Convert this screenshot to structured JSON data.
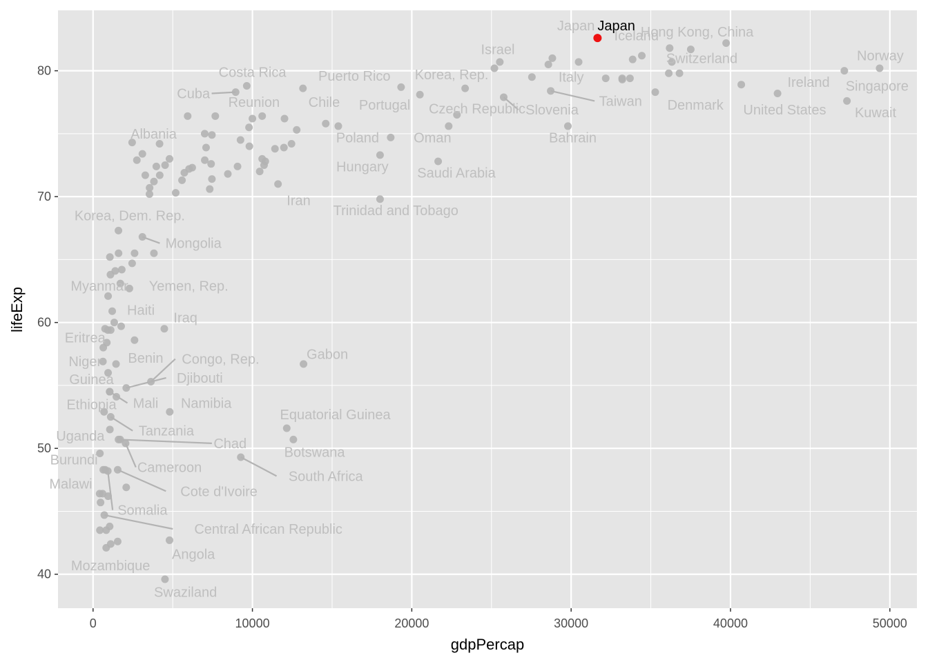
{
  "chart_data": {
    "type": "scatter",
    "xlabel": "gdpPercap",
    "ylabel": "lifeExp",
    "xlim": [
      -2200,
      51700
    ],
    "ylim": [
      37.3,
      84.8
    ],
    "x_ticks": [
      0,
      10000,
      20000,
      30000,
      40000,
      50000
    ],
    "x_tick_labels": [
      "0",
      "10000",
      "20000",
      "30000",
      "40000",
      "50000"
    ],
    "y_ticks": [
      40,
      50,
      60,
      70,
      80
    ],
    "y_tick_labels": [
      "40",
      "50",
      "60",
      "70",
      "80"
    ],
    "grid": true,
    "colors": {
      "panel": "#e5e5e5",
      "grid": "#ffffff",
      "point": "#b3b3b3",
      "label": "#bfbfbf",
      "highlight_point": "#ee1111",
      "highlight_label": "#000000"
    },
    "highlight": {
      "name": "Japan",
      "x": 31656,
      "y": 82.6
    },
    "labels": [
      {
        "name": "Japan",
        "x": 31656,
        "y": 82.6,
        "lx": 30300,
        "ly": 83.6
      },
      {
        "name": "Iceland",
        "x": 36181,
        "y": 81.8,
        "lx": 34100,
        "ly": 82.8
      },
      {
        "name": "Hong Kong, China",
        "x": 39725,
        "y": 82.2,
        "lx": 37900,
        "ly": 83.1
      },
      {
        "name": "Israel",
        "x": 25523,
        "y": 80.7,
        "lx": 25400,
        "ly": 81.7
      },
      {
        "name": "Norway",
        "x": 49357,
        "y": 80.2,
        "lx": 49400,
        "ly": 81.2
      },
      {
        "name": "Switzerland",
        "x": 37506,
        "y": 81.7,
        "lx": 38200,
        "ly": 81.0
      },
      {
        "name": "Costa Rica",
        "x": 9645,
        "y": 78.8,
        "lx": 10000,
        "ly": 79.9
      },
      {
        "name": "Puerto Rico",
        "x": 19329,
        "y": 78.7,
        "lx": 16400,
        "ly": 79.6
      },
      {
        "name": "Korea, Rep.",
        "x": 23348,
        "y": 78.6,
        "lx": 22500,
        "ly": 79.7
      },
      {
        "name": "Italy",
        "x": 28570,
        "y": 80.5,
        "lx": 30000,
        "ly": 79.5
      },
      {
        "name": "Ireland",
        "x": 40676,
        "y": 78.9,
        "lx": 44900,
        "ly": 79.1
      },
      {
        "name": "Singapore",
        "x": 47143,
        "y": 80.0,
        "lx": 49200,
        "ly": 78.8
      },
      {
        "name": "Cuba",
        "x": 8948,
        "y": 78.3,
        "lx": 6300,
        "ly": 78.2,
        "leader": true
      },
      {
        "name": "Taiwan",
        "x": 28718,
        "y": 78.4,
        "lx": 33100,
        "ly": 77.6,
        "leader": true
      },
      {
        "name": "Reunion",
        "x": 7670,
        "y": 76.4,
        "lx": 10100,
        "ly": 77.5
      },
      {
        "name": "Chile",
        "x": 13172,
        "y": 78.6,
        "lx": 14500,
        "ly": 77.5
      },
      {
        "name": "Denmark",
        "x": 35278,
        "y": 78.3,
        "lx": 37800,
        "ly": 77.3
      },
      {
        "name": "Portugal",
        "x": 20510,
        "y": 78.1,
        "lx": 18300,
        "ly": 77.3
      },
      {
        "name": "Czech Republic",
        "x": 22833,
        "y": 76.5,
        "lx": 24100,
        "ly": 77.0
      },
      {
        "name": "Slovenia",
        "x": 25768,
        "y": 77.9,
        "lx": 28800,
        "ly": 76.9,
        "leader": true
      },
      {
        "name": "United States",
        "x": 42952,
        "y": 78.2,
        "lx": 43400,
        "ly": 76.9
      },
      {
        "name": "Kuwait",
        "x": 47307,
        "y": 77.6,
        "lx": 49100,
        "ly": 76.7
      },
      {
        "name": "Albania",
        "x": 5937,
        "y": 76.4,
        "lx": 3800,
        "ly": 75.0
      },
      {
        "name": "Poland",
        "x": 15390,
        "y": 75.6,
        "lx": 16600,
        "ly": 74.7
      },
      {
        "name": "Oman",
        "x": 22316,
        "y": 75.6,
        "lx": 21300,
        "ly": 74.7
      },
      {
        "name": "Bahrain",
        "x": 29796,
        "y": 75.6,
        "lx": 30100,
        "ly": 74.7
      },
      {
        "name": "Hungary",
        "x": 18009,
        "y": 73.3,
        "lx": 16900,
        "ly": 72.4
      },
      {
        "name": "Saudi Arabia",
        "x": 21655,
        "y": 72.8,
        "lx": 22800,
        "ly": 71.9
      },
      {
        "name": "Iran",
        "x": 11606,
        "y": 71.0,
        "lx": 12900,
        "ly": 69.7
      },
      {
        "name": "Trinidad and Tobago",
        "x": 18009,
        "y": 69.8,
        "lx": 19000,
        "ly": 68.9
      },
      {
        "name": "Korea, Dem. Rep.",
        "x": 1593,
        "y": 67.3,
        "lx": 2300,
        "ly": 68.5
      },
      {
        "name": "Mongolia",
        "x": 3096,
        "y": 66.8,
        "lx": 6300,
        "ly": 66.3,
        "leader": true
      },
      {
        "name": "Myanmar",
        "x": 944,
        "y": 62.1,
        "lx": 400,
        "ly": 62.9
      },
      {
        "name": "Yemen, Rep.",
        "x": 2281,
        "y": 62.7,
        "lx": 6000,
        "ly": 62.9
      },
      {
        "name": "Haiti",
        "x": 1202,
        "y": 60.9,
        "lx": 3000,
        "ly": 61.0
      },
      {
        "name": "Iraq",
        "x": 4471,
        "y": 59.5,
        "lx": 5800,
        "ly": 60.4
      },
      {
        "name": "Eritrea",
        "x": 641,
        "y": 58.0,
        "lx": -500,
        "ly": 58.8
      },
      {
        "name": "Gabon",
        "x": 13206,
        "y": 56.7,
        "lx": 14700,
        "ly": 57.5
      },
      {
        "name": "Benin",
        "x": 1441,
        "y": 56.7,
        "lx": 3300,
        "ly": 57.2
      },
      {
        "name": "Congo, Rep.",
        "x": 3632,
        "y": 55.3,
        "lx": 8000,
        "ly": 57.1,
        "leader": true
      },
      {
        "name": "Niger",
        "x": 619,
        "y": 56.9,
        "lx": -500,
        "ly": 56.9
      },
      {
        "name": "Djibouti",
        "x": 2082,
        "y": 54.8,
        "lx": 6700,
        "ly": 55.6,
        "leader": true
      },
      {
        "name": "Guinea",
        "x": 943,
        "y": 56.0,
        "lx": -100,
        "ly": 55.5
      },
      {
        "name": "Mali",
        "x": 1042,
        "y": 54.5,
        "lx": 3300,
        "ly": 53.6,
        "leader": true
      },
      {
        "name": "Namibia",
        "x": 4811,
        "y": 52.9,
        "lx": 7100,
        "ly": 53.6
      },
      {
        "name": "Ethiopia",
        "x": 691,
        "y": 52.9,
        "lx": -100,
        "ly": 53.5
      },
      {
        "name": "Equatorial Guinea",
        "x": 12154,
        "y": 51.6,
        "lx": 15200,
        "ly": 52.7
      },
      {
        "name": "Tanzania",
        "x": 1107,
        "y": 52.5,
        "lx": 4600,
        "ly": 51.4,
        "leader": true
      },
      {
        "name": "Uganda",
        "x": 1056,
        "y": 51.5,
        "lx": -800,
        "ly": 51.0
      },
      {
        "name": "Chad",
        "x": 1704,
        "y": 50.7,
        "lx": 8600,
        "ly": 50.4,
        "leader": true
      },
      {
        "name": "Botswana",
        "x": 12570,
        "y": 50.7,
        "lx": 13900,
        "ly": 49.7
      },
      {
        "name": "Burundi",
        "x": 430,
        "y": 49.6,
        "lx": -1200,
        "ly": 49.1
      },
      {
        "name": "Cameroon",
        "x": 2042,
        "y": 50.4,
        "lx": 4800,
        "ly": 48.5,
        "leader": true
      },
      {
        "name": "South Africa",
        "x": 9270,
        "y": 49.3,
        "lx": 14600,
        "ly": 47.8,
        "leader": true
      },
      {
        "name": "Malawi",
        "x": 759,
        "y": 48.3,
        "lx": -1400,
        "ly": 47.2
      },
      {
        "name": "Cote d'Ivoire",
        "x": 1545,
        "y": 48.3,
        "lx": 7900,
        "ly": 46.6,
        "leader": true
      },
      {
        "name": "Somalia",
        "x": 926,
        "y": 48.2,
        "lx": 3100,
        "ly": 45.1,
        "leader": true
      },
      {
        "name": "Central African Republic",
        "x": 706,
        "y": 44.7,
        "lx": 11000,
        "ly": 43.6,
        "leader": true
      },
      {
        "name": "Angola",
        "x": 4797,
        "y": 42.7,
        "lx": 6300,
        "ly": 41.6
      },
      {
        "name": "Mozambique",
        "x": 824,
        "y": 42.1,
        "lx": 1100,
        "ly": 40.7
      },
      {
        "name": "Swaziland",
        "x": 4513,
        "y": 39.6,
        "lx": 5800,
        "ly": 38.6
      }
    ],
    "points": [
      [
        31656,
        82.6
      ],
      [
        36181,
        81.8
      ],
      [
        39725,
        82.2
      ],
      [
        25523,
        80.7
      ],
      [
        49357,
        80.2
      ],
      [
        37506,
        81.7
      ],
      [
        9645,
        78.8
      ],
      [
        19329,
        78.7
      ],
      [
        23348,
        78.6
      ],
      [
        28570,
        80.5
      ],
      [
        40676,
        78.9
      ],
      [
        47143,
        80.0
      ],
      [
        8948,
        78.3
      ],
      [
        28718,
        78.4
      ],
      [
        7670,
        76.4
      ],
      [
        13172,
        78.6
      ],
      [
        35278,
        78.3
      ],
      [
        20510,
        78.1
      ],
      [
        22833,
        76.5
      ],
      [
        25768,
        77.9
      ],
      [
        42952,
        78.2
      ],
      [
        47307,
        77.6
      ],
      [
        5937,
        76.4
      ],
      [
        15390,
        75.6
      ],
      [
        22316,
        75.6
      ],
      [
        29796,
        75.6
      ],
      [
        18009,
        73.3
      ],
      [
        21655,
        72.8
      ],
      [
        11606,
        71.0
      ],
      [
        18009,
        69.8
      ],
      [
        1593,
        67.3
      ],
      [
        3096,
        66.8
      ],
      [
        944,
        62.1
      ],
      [
        2281,
        62.7
      ],
      [
        1202,
        60.9
      ],
      [
        4471,
        59.5
      ],
      [
        641,
        58.0
      ],
      [
        13206,
        56.7
      ],
      [
        1441,
        56.7
      ],
      [
        3632,
        55.3
      ],
      [
        619,
        56.9
      ],
      [
        2082,
        54.8
      ],
      [
        943,
        56.0
      ],
      [
        1042,
        54.5
      ],
      [
        4811,
        52.9
      ],
      [
        691,
        52.9
      ],
      [
        12154,
        51.6
      ],
      [
        1107,
        52.5
      ],
      [
        1056,
        51.5
      ],
      [
        1704,
        50.7
      ],
      [
        12570,
        50.7
      ],
      [
        430,
        49.6
      ],
      [
        2042,
        50.4
      ],
      [
        9270,
        49.3
      ],
      [
        759,
        48.3
      ],
      [
        1545,
        48.3
      ],
      [
        926,
        48.2
      ],
      [
        706,
        44.7
      ],
      [
        4797,
        42.7
      ],
      [
        824,
        42.1
      ],
      [
        4513,
        39.6
      ],
      [
        28821,
        81.0
      ],
      [
        30470,
        80.7
      ],
      [
        33860,
        80.9
      ],
      [
        34435,
        81.2
      ],
      [
        36320,
        80.7
      ],
      [
        36126,
        79.8
      ],
      [
        36798,
        79.8
      ],
      [
        33207,
        79.3
      ],
      [
        33692,
        79.4
      ],
      [
        32170,
        79.4
      ],
      [
        33203,
        79.4
      ],
      [
        27538,
        79.5
      ],
      [
        25185,
        80.2
      ],
      [
        12779,
        75.3
      ],
      [
        14600,
        75.8
      ],
      [
        18678,
        74.7
      ],
      [
        10000,
        76.2
      ],
      [
        10612,
        76.4
      ],
      [
        12013,
        76.2
      ],
      [
        9786,
        75.5
      ],
      [
        11977,
        73.9
      ],
      [
        12452,
        74.2
      ],
      [
        11415,
        73.8
      ],
      [
        10808,
        72.8
      ],
      [
        10611,
        73.0
      ],
      [
        10730,
        72.5
      ],
      [
        10457,
        72.0
      ],
      [
        9253,
        74.5
      ],
      [
        9809,
        74.0
      ],
      [
        9066,
        72.4
      ],
      [
        8458,
        71.8
      ],
      [
        7458,
        74.9
      ],
      [
        7006,
        75.0
      ],
      [
        7092,
        73.9
      ],
      [
        7408,
        72.6
      ],
      [
        7010,
        72.9
      ],
      [
        7458,
        71.4
      ],
      [
        7321,
        70.6
      ],
      [
        6223,
        72.3
      ],
      [
        6025,
        72.2
      ],
      [
        5728,
        71.9
      ],
      [
        5581,
        71.3
      ],
      [
        5186,
        70.3
      ],
      [
        4797,
        73.0
      ],
      [
        4173,
        74.2
      ],
      [
        4519,
        72.5
      ],
      [
        3970,
        72.4
      ],
      [
        4184,
        71.7
      ],
      [
        3820,
        71.2
      ],
      [
        3548,
        70.7
      ],
      [
        3540,
        70.2
      ],
      [
        2749,
        72.9
      ],
      [
        3095,
        73.4
      ],
      [
        2452,
        74.3
      ],
      [
        3277,
        71.7
      ],
      [
        1056,
        65.2
      ],
      [
        1599,
        65.5
      ],
      [
        2605,
        65.5
      ],
      [
        3820,
        65.5
      ],
      [
        1391,
        64.1
      ],
      [
        1803,
        64.2
      ],
      [
        2452,
        64.7
      ],
      [
        1091,
        63.8
      ],
      [
        1713,
        63.1
      ],
      [
        1328,
        60.0
      ],
      [
        1763,
        59.7
      ],
      [
        926,
        59.4
      ],
      [
        1107,
        59.4
      ],
      [
        2602,
        58.6
      ],
      [
        752,
        59.5
      ],
      [
        863,
        58.4
      ],
      [
        1044,
        54.5
      ],
      [
        1463,
        54.1
      ],
      [
        600,
        46.4
      ],
      [
        415,
        46.4
      ],
      [
        943,
        46.2
      ],
      [
        470,
        45.7
      ],
      [
        824,
        43.5
      ],
      [
        1042,
        43.8
      ],
      [
        430,
        43.5
      ],
      [
        1545,
        42.6
      ],
      [
        1107,
        42.4
      ],
      [
        641,
        48.3
      ],
      [
        2082,
        46.9
      ],
      [
        1596,
        50.7
      ]
    ]
  }
}
